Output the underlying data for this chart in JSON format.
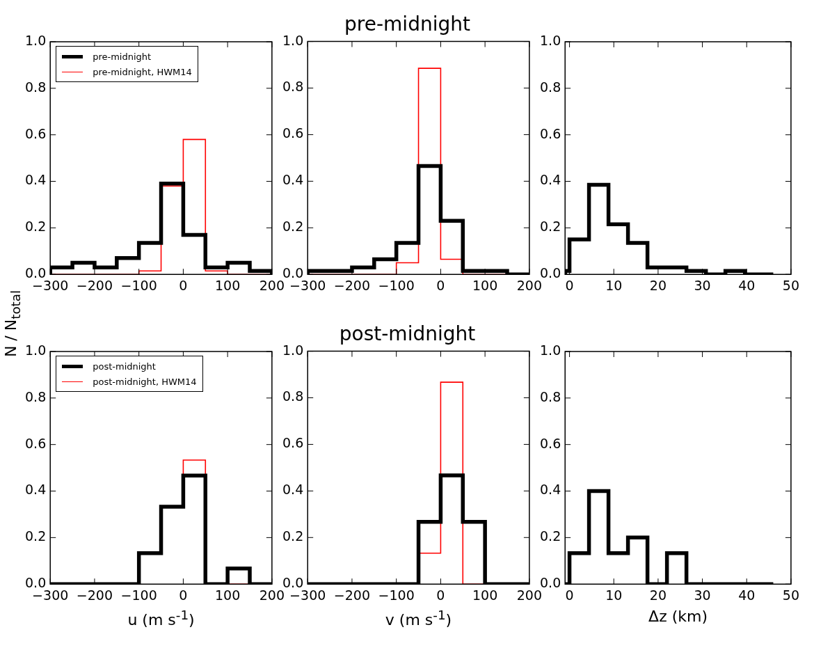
{
  "chart_data": [
    {
      "type": "histogram",
      "legend": "top left",
      "ylabel": "N / N$_{total}$",
      "bins": [
        -300,
        -250,
        -200,
        -150,
        -100,
        -50,
        0,
        50,
        100,
        150,
        200
      ],
      "series": [
        {
          "name": "pre-midnight",
          "color": "#000000",
          "values": [
            0.03,
            0.05,
            0.03,
            0.07,
            0.135,
            0.39,
            0.17,
            0.03,
            0.05,
            0.015
          ]
        },
        {
          "name": "pre-midnight, HWM14",
          "color": "#ff0000",
          "values": [
            0,
            0,
            0,
            0,
            0.015,
            0.38,
            0.58,
            0.015,
            0,
            0
          ]
        }
      ],
      "xlim": [
        -300,
        200
      ],
      "xticks": [
        -300,
        -200,
        -100,
        0,
        100,
        200
      ],
      "ylim": [
        0,
        1
      ],
      "yticks": [
        {
          "value": 0,
          "label": "0.0"
        },
        {
          "value": 0.2,
          "label": "0.2"
        },
        {
          "value": 0.4,
          "label": "0.4"
        },
        {
          "value": 0.6,
          "label": "0.6"
        },
        {
          "value": 0.8,
          "label": "0.8"
        },
        {
          "value": 1,
          "label": "1.0"
        }
      ]
    },
    {
      "type": "histogram",
      "title": "pre-midnight",
      "bins": [
        -300,
        -250,
        -200,
        -150,
        -100,
        -50,
        0,
        50,
        100,
        150,
        200
      ],
      "series": [
        {
          "color": "#000000",
          "values": [
            0.015,
            0.015,
            0.03,
            0.065,
            0.135,
            0.465,
            0.23,
            0.015,
            0.015,
            0
          ]
        },
        {
          "color": "#ff0000",
          "values": [
            0,
            0,
            0,
            0,
            0.05,
            0.885,
            0.065,
            0,
            0,
            0
          ]
        }
      ],
      "xlim": [
        -300,
        200
      ],
      "xticks": [
        -300,
        -200,
        -100,
        0,
        100,
        200
      ],
      "ylim": [
        0,
        1
      ],
      "yticks": [
        {
          "value": 0,
          "label": "0.0"
        },
        {
          "value": 0.2,
          "label": "0.2"
        },
        {
          "value": 0.4,
          "label": "0.4"
        },
        {
          "value": 0.6,
          "label": "0.6"
        },
        {
          "value": 0.8,
          "label": "0.8"
        },
        {
          "value": 1,
          "label": "1.0"
        }
      ]
    },
    {
      "type": "histogram",
      "bins": [
        -1,
        0,
        4.4,
        8.8,
        13.2,
        17.6,
        22,
        26.4,
        30.8,
        35.2,
        39.6,
        46
      ],
      "series": [
        {
          "color": "#000000",
          "values": [
            0.015,
            0.15,
            0.385,
            0.215,
            0.135,
            0.03,
            0.03,
            0.015,
            0,
            0.015,
            0
          ]
        }
      ],
      "xlim": [
        -1,
        50
      ],
      "xticks": [
        0,
        10,
        20,
        30,
        40,
        50
      ],
      "ylim": [
        0,
        1
      ],
      "yticks": [
        {
          "value": 0,
          "label": "0.0"
        },
        {
          "value": 0.2,
          "label": "0.2"
        },
        {
          "value": 0.4,
          "label": "0.4"
        },
        {
          "value": 0.6,
          "label": "0.6"
        },
        {
          "value": 0.8,
          "label": "0.8"
        },
        {
          "value": 1,
          "label": "1.0"
        }
      ]
    },
    {
      "type": "histogram",
      "legend": "top left",
      "xlabel": "u (m s$^{-1}$)",
      "bins": [
        -300,
        -250,
        -200,
        -150,
        -100,
        -50,
        0,
        50,
        100,
        150,
        200
      ],
      "series": [
        {
          "name": "post-midnight",
          "color": "#000000",
          "values": [
            0,
            0,
            0,
            0,
            0.133,
            0.333,
            0.467,
            0,
            0.067,
            0
          ]
        },
        {
          "name": "post-midnight, HWM14",
          "color": "#ff0000",
          "values": [
            0,
            0,
            0,
            0,
            0.133,
            0.333,
            0.533,
            0,
            0,
            0
          ]
        }
      ],
      "xlim": [
        -300,
        200
      ],
      "xticks": [
        -300,
        -200,
        -100,
        0,
        100,
        200
      ],
      "ylim": [
        0,
        1
      ],
      "yticks": [
        {
          "value": 0,
          "label": "0.0"
        },
        {
          "value": 0.2,
          "label": "0.2"
        },
        {
          "value": 0.4,
          "label": "0.4"
        },
        {
          "value": 0.6,
          "label": "0.6"
        },
        {
          "value": 0.8,
          "label": "0.8"
        },
        {
          "value": 1,
          "label": "1.0"
        }
      ]
    },
    {
      "type": "histogram",
      "title": "post-midnight",
      "xlabel": "v (m s$^{-1}$)",
      "bins": [
        -300,
        -250,
        -200,
        -150,
        -100,
        -50,
        0,
        50,
        100,
        150,
        200
      ],
      "series": [
        {
          "color": "#000000",
          "values": [
            0,
            0,
            0,
            0,
            0,
            0.267,
            0.467,
            0.267,
            0,
            0
          ]
        },
        {
          "color": "#ff0000",
          "values": [
            0,
            0,
            0,
            0,
            0,
            0.133,
            0.867,
            0,
            0,
            0
          ]
        }
      ],
      "xlim": [
        -300,
        200
      ],
      "xticks": [
        -300,
        -200,
        -100,
        0,
        100,
        200
      ],
      "ylim": [
        0,
        1
      ],
      "yticks": [
        {
          "value": 0,
          "label": "0.0"
        },
        {
          "value": 0.2,
          "label": "0.2"
        },
        {
          "value": 0.4,
          "label": "0.4"
        },
        {
          "value": 0.6,
          "label": "0.6"
        },
        {
          "value": 0.8,
          "label": "0.8"
        },
        {
          "value": 1,
          "label": "1.0"
        }
      ]
    },
    {
      "type": "histogram",
      "xlabel": "Δz (km)",
      "bins": [
        -1,
        0,
        4.4,
        8.8,
        13.2,
        17.6,
        22,
        26.4,
        30.8,
        35.2,
        39.6,
        46
      ],
      "series": [
        {
          "color": "#000000",
          "values": [
            0,
            0.133,
            0.4,
            0.133,
            0.2,
            0,
            0.133,
            0,
            0,
            0,
            0
          ]
        }
      ],
      "xlim": [
        -1,
        50
      ],
      "xticks": [
        0,
        10,
        20,
        30,
        40,
        50
      ],
      "ylim": [
        0,
        1
      ],
      "yticks": [
        {
          "value": 0,
          "label": "0.0"
        },
        {
          "value": 0.2,
          "label": "0.2"
        },
        {
          "value": 0.4,
          "label": "0.4"
        },
        {
          "value": 0.6,
          "label": "0.6"
        },
        {
          "value": 0.8,
          "label": "0.8"
        },
        {
          "value": 1,
          "label": "1.0"
        }
      ]
    }
  ]
}
